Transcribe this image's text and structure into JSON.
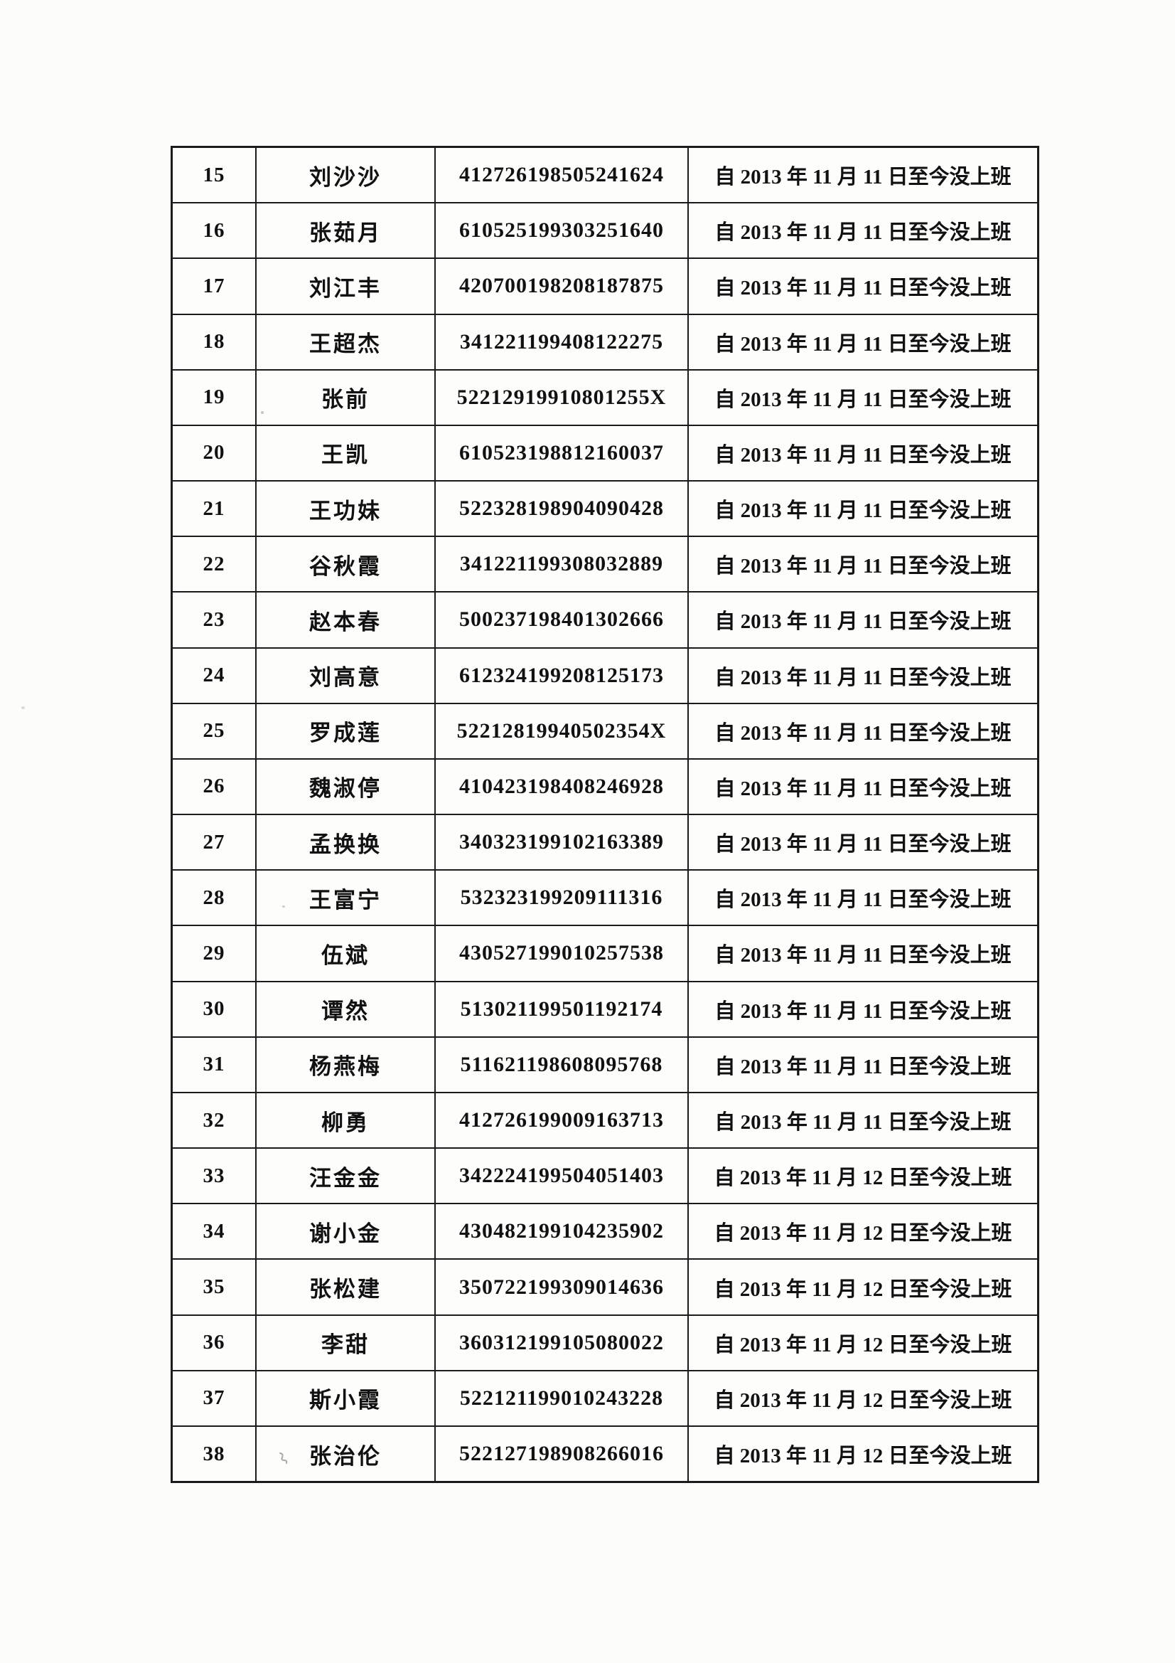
{
  "table": {
    "rows": [
      {
        "no": "15",
        "name": "刘沙沙",
        "id": "412726198505241624",
        "status": "自 2013 年 11 月 11 日至今没上班"
      },
      {
        "no": "16",
        "name": "张茹月",
        "id": "610525199303251640",
        "status": "自 2013 年 11 月 11 日至今没上班"
      },
      {
        "no": "17",
        "name": "刘江丰",
        "id": "420700198208187875",
        "status": "自 2013 年 11 月 11 日至今没上班"
      },
      {
        "no": "18",
        "name": "王超杰",
        "id": "341221199408122275",
        "status": "自 2013 年 11 月 11 日至今没上班"
      },
      {
        "no": "19",
        "name": "张前",
        "id": "52212919910801255X",
        "status": "自 2013 年 11 月 11 日至今没上班"
      },
      {
        "no": "20",
        "name": "王凯",
        "id": "610523198812160037",
        "status": "自 2013 年 11 月 11 日至今没上班"
      },
      {
        "no": "21",
        "name": "王功妹",
        "id": "522328198904090428",
        "status": "自 2013 年 11 月 11 日至今没上班"
      },
      {
        "no": "22",
        "name": "谷秋霞",
        "id": "341221199308032889",
        "status": "自 2013 年 11 月 11 日至今没上班"
      },
      {
        "no": "23",
        "name": "赵本春",
        "id": "500237198401302666",
        "status": "自 2013 年 11 月 11 日至今没上班"
      },
      {
        "no": "24",
        "name": "刘高意",
        "id": "612324199208125173",
        "status": "自 2013 年 11 月 11 日至今没上班"
      },
      {
        "no": "25",
        "name": "罗成莲",
        "id": "52212819940502354X",
        "status": "自 2013 年 11 月 11 日至今没上班"
      },
      {
        "no": "26",
        "name": "魏淑停",
        "id": "410423198408246928",
        "status": "自 2013 年 11 月 11 日至今没上班"
      },
      {
        "no": "27",
        "name": "孟换换",
        "id": "340323199102163389",
        "status": "自 2013 年 11 月 11 日至今没上班"
      },
      {
        "no": "28",
        "name": "王富宁",
        "id": "532323199209111316",
        "status": "自 2013 年 11 月 11 日至今没上班"
      },
      {
        "no": "29",
        "name": "伍斌",
        "id": "430527199010257538",
        "status": "自 2013 年 11 月 11 日至今没上班"
      },
      {
        "no": "30",
        "name": "谭然",
        "id": "513021199501192174",
        "status": "自 2013 年 11 月 11 日至今没上班"
      },
      {
        "no": "31",
        "name": "杨燕梅",
        "id": "511621198608095768",
        "status": "自 2013 年 11 月 11 日至今没上班"
      },
      {
        "no": "32",
        "name": "柳勇",
        "id": "412726199009163713",
        "status": "自 2013 年 11 月 11 日至今没上班"
      },
      {
        "no": "33",
        "name": "汪金金",
        "id": "342224199504051403",
        "status": "自 2013 年 11 月 12 日至今没上班"
      },
      {
        "no": "34",
        "name": "谢小金",
        "id": "430482199104235902",
        "status": "自 2013 年 11 月 12 日至今没上班"
      },
      {
        "no": "35",
        "name": "张松建",
        "id": "350722199309014636",
        "status": "自 2013 年 11 月 12 日至今没上班"
      },
      {
        "no": "36",
        "name": "李甜",
        "id": "360312199105080022",
        "status": "自 2013 年 11 月 12 日至今没上班"
      },
      {
        "no": "37",
        "name": "斯小霞",
        "id": "522121199010243228",
        "status": "自 2013 年 11 月 12 日至今没上班"
      },
      {
        "no": "38",
        "name": "张治伦",
        "id": "522127198908266016",
        "status": "自 2013 年 11 月 12 日至今没上班"
      }
    ]
  }
}
